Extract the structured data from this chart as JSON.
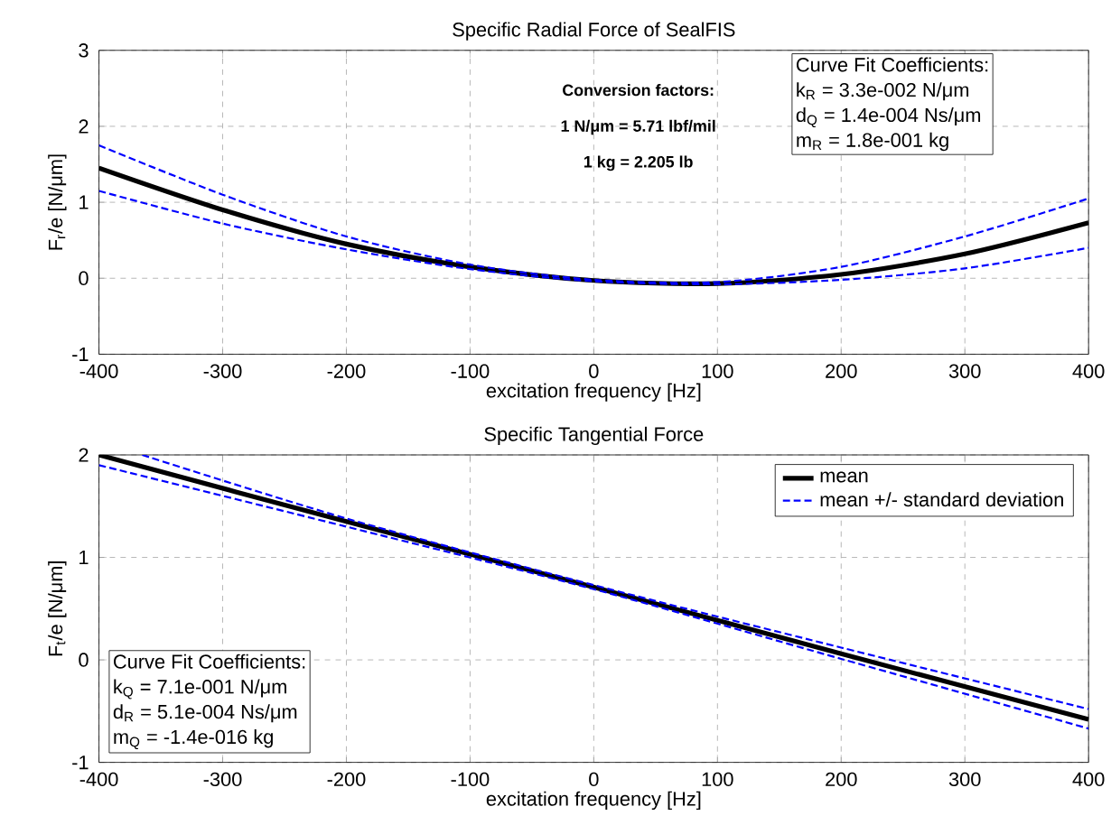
{
  "chart_data": [
    {
      "type": "line",
      "title": "Specific Radial Force of SealFIS",
      "xlabel": "excitation frequency [Hz]",
      "ylabel": "F$_{r}$/e  [N/μm]",
      "x": [
        -400,
        -300,
        -200,
        -100,
        0,
        100,
        200,
        300,
        400
      ],
      "series": [
        {
          "color": "#000000",
          "line_style": "solid",
          "values": [
            1.45,
            0.9,
            0.45,
            0.15,
            -0.03,
            -0.07,
            0.05,
            0.32,
            0.73
          ]
        },
        {
          "color": "#0000ff",
          "line_style": "dashed",
          "values": [
            1.75,
            1.1,
            0.55,
            0.18,
            -0.02,
            -0.05,
            0.15,
            0.55,
            1.05
          ]
        },
        {
          "color": "#0000ff",
          "line_style": "dashed",
          "values": [
            1.15,
            0.72,
            0.38,
            0.12,
            -0.04,
            -0.08,
            -0.02,
            0.13,
            0.4
          ]
        }
      ],
      "xlim": [
        -400,
        400
      ],
      "ylim": [
        -1,
        3
      ],
      "xticks": [
        -400,
        -300,
        -200,
        -100,
        0,
        100,
        200,
        300,
        400
      ],
      "yticks": [
        -1,
        0,
        1,
        2,
        3
      ],
      "grid": true,
      "annotations": [
        "Conversion factors:",
        "1 N/μm = 5.71 lbf/mil",
        "1 kg = 2.205 lb",
        "Curve Fit Coefficients:",
        "k$_{R}$ = 3.3e-002 N/μm",
        "d$_{Q}$ = 1.4e-004 Ns/μm",
        "m$_{R}$ = 1.8e-001 kg"
      ]
    },
    {
      "type": "line",
      "title": "Specific Tangential Force",
      "xlabel": "excitation frequency [Hz]",
      "ylabel": "F$_{t}$/e  [N/μm]",
      "x": [
        -400,
        -200,
        0,
        200,
        400
      ],
      "series": [
        {
          "name": "mean",
          "color": "#000000",
          "line_style": "solid",
          "values": [
            2.0,
            1.35,
            0.71,
            0.06,
            -0.58
          ]
        },
        {
          "name": "mean +/- standard deviation",
          "color": "#0000ff",
          "line_style": "dashed",
          "x": [
            -365,
            -200,
            0,
            200,
            400
          ],
          "values": [
            2.0,
            1.38,
            0.73,
            0.12,
            -0.48
          ]
        },
        {
          "color": "#0000ff",
          "line_style": "dashed",
          "values": [
            1.9,
            1.3,
            0.69,
            0.01,
            -0.67
          ]
        }
      ],
      "xlim": [
        -400,
        400
      ],
      "ylim": [
        -1,
        2
      ],
      "xticks": [
        -400,
        -300,
        -200,
        -100,
        0,
        100,
        200,
        300,
        400
      ],
      "yticks": [
        -1,
        0,
        1,
        2
      ],
      "grid": true,
      "legend": "top right",
      "annotations": [
        "Curve Fit Coefficients:",
        "k$_{Q}$ = 7.1e-001 N/μm",
        "d$_{R}$ = 5.1e-004 Ns/μm",
        "m$_{Q}$ = -1.4e-016 kg"
      ]
    }
  ]
}
